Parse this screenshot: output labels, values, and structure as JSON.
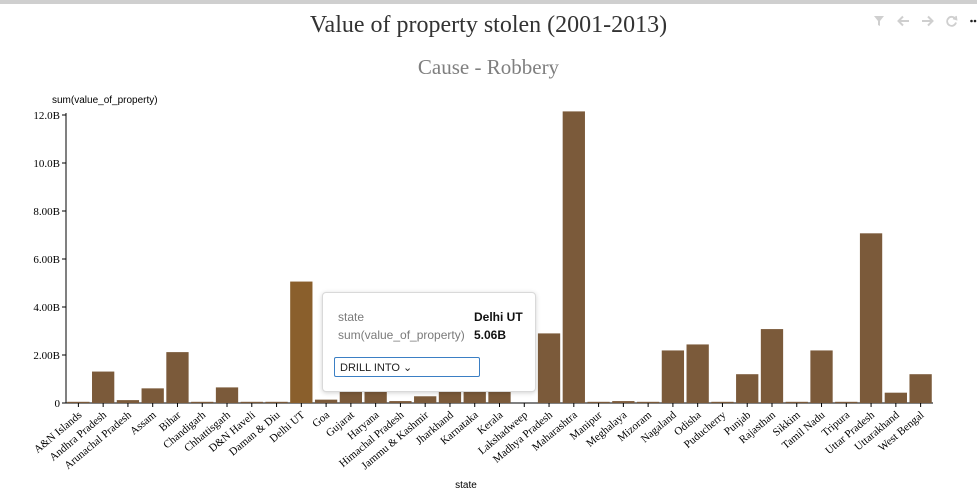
{
  "title": "Value of property stolen (2001-2013)",
  "subtitle": "Cause - Robbery",
  "toolbar": [
    {
      "name": "filter-icon"
    },
    {
      "name": "back-arrow-icon"
    },
    {
      "name": "forward-arrow-icon"
    },
    {
      "name": "refresh-icon"
    },
    {
      "name": "more-icon"
    }
  ],
  "tooltip": {
    "state_key": "state",
    "state_value": "Delhi UT",
    "metric_key": "sum(value_of_property)",
    "metric_value": "5.06B",
    "drill_label": "DRILL INTO ⌄"
  },
  "colors": {
    "bar": "#7b5a3a",
    "bar_highlight": "#8a5f2c",
    "axis": "#000000"
  },
  "chart_data": {
    "type": "bar",
    "xlabel": "state",
    "ylabel": "sum(value_of_property)",
    "ylim": [
      0,
      12000000000
    ],
    "yticks": [
      0,
      2000000000,
      4000000000,
      6000000000,
      8000000000,
      10000000000,
      12000000000
    ],
    "ytick_labels": [
      "0",
      "2.00B",
      "4.00B",
      "6.00B",
      "8.00B",
      "10.0B",
      "12.0B"
    ],
    "highlighted": "Delhi UT",
    "categories": [
      "A&N Islands",
      "Andhra Pradesh",
      "Arunachal Pradesh",
      "Assam",
      "Bihar",
      "Chandigarh",
      "Chhattisgarh",
      "D&N Haveli",
      "Daman & Diu",
      "Delhi UT",
      "Goa",
      "Gujarat",
      "Haryana",
      "Himachal Pradesh",
      "Jammu & Kashmir",
      "Jharkhand",
      "Karnataka",
      "Kerala",
      "Lakshadweep",
      "Madhya Pradesh",
      "Maharashtra",
      "Manipur",
      "Meghalaya",
      "Mizoram",
      "Nagaland",
      "Odisha",
      "Puducherry",
      "Punjab",
      "Rajasthan",
      "Sikkim",
      "Tamil Nadu",
      "Tripura",
      "Uttar Pradesh",
      "Uttarakhand",
      "West Bengal"
    ],
    "values": [
      10000000,
      1310000000,
      120000000,
      610000000,
      2120000000,
      50000000,
      650000000,
      10000000,
      30000000,
      5060000000,
      140000000,
      640000000,
      580000000,
      80000000,
      280000000,
      580000000,
      580000000,
      580000000,
      0,
      2900000000,
      12150000000,
      30000000,
      80000000,
      20000000,
      2190000000,
      2440000000,
      30000000,
      1200000000,
      3080000000,
      20000000,
      2190000000,
      50000000,
      7070000000,
      430000000,
      1200000000
    ]
  }
}
